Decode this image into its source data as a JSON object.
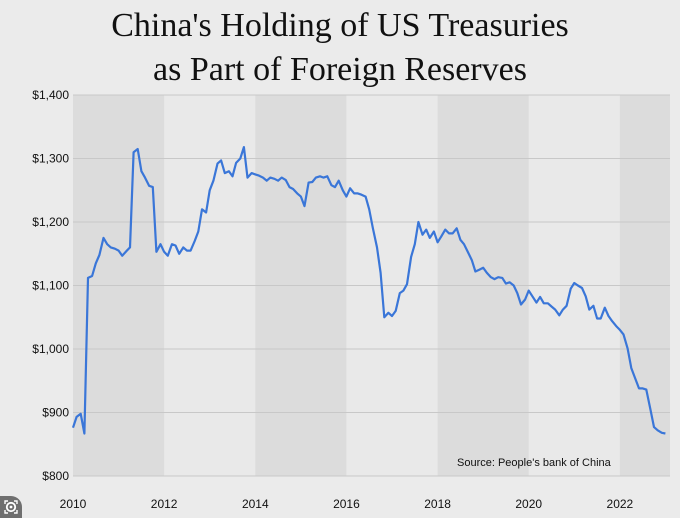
{
  "chart_data": {
    "type": "line",
    "title": "China's Holding of US Treasuries",
    "subtitle": "as Part of Foreign Reserves",
    "xlabel": "",
    "ylabel": "",
    "xlim": [
      2010,
      2023.1
    ],
    "ylim": [
      800,
      1400
    ],
    "x_ticks": [
      "2010",
      "2012",
      "2014",
      "2016",
      "2018",
      "2020",
      "2022"
    ],
    "y_ticks": [
      "$800",
      "$900",
      "$1,000",
      "$1,100",
      "$1,200",
      "$1,300",
      "$1,400"
    ],
    "grid": true,
    "shaded_bands": [
      [
        2010,
        2012
      ],
      [
        2014,
        2016
      ],
      [
        2018,
        2020
      ],
      [
        2022,
        2023.1
      ]
    ],
    "line_color": "#3a76d8",
    "source": "Source: People's bank of China",
    "series": [
      {
        "points": [
          [
            2010.0,
            876
          ],
          [
            2010.08,
            893
          ],
          [
            2010.17,
            898
          ],
          [
            2010.25,
            867
          ],
          [
            2010.33,
            1112
          ],
          [
            2010.42,
            1115
          ],
          [
            2010.5,
            1135
          ],
          [
            2010.58,
            1148
          ],
          [
            2010.67,
            1175
          ],
          [
            2010.75,
            1165
          ],
          [
            2010.83,
            1160
          ],
          [
            2010.92,
            1158
          ],
          [
            2011.0,
            1155
          ],
          [
            2011.08,
            1147
          ],
          [
            2011.17,
            1154
          ],
          [
            2011.25,
            1160
          ],
          [
            2011.33,
            1310
          ],
          [
            2011.42,
            1315
          ],
          [
            2011.5,
            1280
          ],
          [
            2011.58,
            1270
          ],
          [
            2011.67,
            1257
          ],
          [
            2011.75,
            1255
          ],
          [
            2011.83,
            1153
          ],
          [
            2011.92,
            1165
          ],
          [
            2012.0,
            1153
          ],
          [
            2012.08,
            1147
          ],
          [
            2012.17,
            1165
          ],
          [
            2012.25,
            1163
          ],
          [
            2012.33,
            1150
          ],
          [
            2012.42,
            1160
          ],
          [
            2012.5,
            1155
          ],
          [
            2012.58,
            1155
          ],
          [
            2012.67,
            1170
          ],
          [
            2012.75,
            1185
          ],
          [
            2012.83,
            1220
          ],
          [
            2012.92,
            1215
          ],
          [
            2013.0,
            1250
          ],
          [
            2013.08,
            1265
          ],
          [
            2013.17,
            1292
          ],
          [
            2013.25,
            1297
          ],
          [
            2013.33,
            1277
          ],
          [
            2013.42,
            1280
          ],
          [
            2013.5,
            1272
          ],
          [
            2013.58,
            1293
          ],
          [
            2013.67,
            1300
          ],
          [
            2013.75,
            1318
          ],
          [
            2013.83,
            1270
          ],
          [
            2013.92,
            1277
          ],
          [
            2014.0,
            1275
          ],
          [
            2014.08,
            1273
          ],
          [
            2014.17,
            1270
          ],
          [
            2014.25,
            1265
          ],
          [
            2014.33,
            1270
          ],
          [
            2014.42,
            1268
          ],
          [
            2014.5,
            1265
          ],
          [
            2014.58,
            1270
          ],
          [
            2014.67,
            1266
          ],
          [
            2014.75,
            1255
          ],
          [
            2014.83,
            1252
          ],
          [
            2014.92,
            1245
          ],
          [
            2015.0,
            1240
          ],
          [
            2015.08,
            1225
          ],
          [
            2015.17,
            1262
          ],
          [
            2015.25,
            1263
          ],
          [
            2015.33,
            1270
          ],
          [
            2015.42,
            1272
          ],
          [
            2015.5,
            1270
          ],
          [
            2015.58,
            1272
          ],
          [
            2015.67,
            1258
          ],
          [
            2015.75,
            1255
          ],
          [
            2015.83,
            1265
          ],
          [
            2015.92,
            1250
          ],
          [
            2016.0,
            1240
          ],
          [
            2016.08,
            1253
          ],
          [
            2016.17,
            1245
          ],
          [
            2016.25,
            1245
          ],
          [
            2016.33,
            1243
          ],
          [
            2016.42,
            1240
          ],
          [
            2016.5,
            1220
          ],
          [
            2016.58,
            1190
          ],
          [
            2016.67,
            1160
          ],
          [
            2016.75,
            1120
          ],
          [
            2016.83,
            1050
          ],
          [
            2016.92,
            1057
          ],
          [
            2017.0,
            1052
          ],
          [
            2017.08,
            1060
          ],
          [
            2017.17,
            1088
          ],
          [
            2017.25,
            1092
          ],
          [
            2017.33,
            1102
          ],
          [
            2017.42,
            1145
          ],
          [
            2017.5,
            1165
          ],
          [
            2017.58,
            1200
          ],
          [
            2017.67,
            1180
          ],
          [
            2017.75,
            1188
          ],
          [
            2017.83,
            1175
          ],
          [
            2017.92,
            1185
          ],
          [
            2018.0,
            1168
          ],
          [
            2018.08,
            1177
          ],
          [
            2018.17,
            1188
          ],
          [
            2018.25,
            1182
          ],
          [
            2018.33,
            1182
          ],
          [
            2018.42,
            1190
          ],
          [
            2018.5,
            1172
          ],
          [
            2018.58,
            1165
          ],
          [
            2018.67,
            1152
          ],
          [
            2018.75,
            1140
          ],
          [
            2018.83,
            1122
          ],
          [
            2018.92,
            1125
          ],
          [
            2019.0,
            1128
          ],
          [
            2019.08,
            1120
          ],
          [
            2019.17,
            1113
          ],
          [
            2019.25,
            1110
          ],
          [
            2019.33,
            1113
          ],
          [
            2019.42,
            1112
          ],
          [
            2019.5,
            1103
          ],
          [
            2019.58,
            1105
          ],
          [
            2019.67,
            1100
          ],
          [
            2019.75,
            1088
          ],
          [
            2019.83,
            1070
          ],
          [
            2019.92,
            1078
          ],
          [
            2020.0,
            1092
          ],
          [
            2020.08,
            1083
          ],
          [
            2020.17,
            1073
          ],
          [
            2020.25,
            1082
          ],
          [
            2020.33,
            1072
          ],
          [
            2020.42,
            1072
          ],
          [
            2020.5,
            1067
          ],
          [
            2020.58,
            1062
          ],
          [
            2020.67,
            1053
          ],
          [
            2020.75,
            1062
          ],
          [
            2020.83,
            1068
          ],
          [
            2020.92,
            1095
          ],
          [
            2021.0,
            1104
          ],
          [
            2021.08,
            1100
          ],
          [
            2021.17,
            1096
          ],
          [
            2021.25,
            1083
          ],
          [
            2021.33,
            1062
          ],
          [
            2021.42,
            1068
          ],
          [
            2021.5,
            1048
          ],
          [
            2021.58,
            1048
          ],
          [
            2021.67,
            1065
          ],
          [
            2021.75,
            1052
          ],
          [
            2021.83,
            1044
          ],
          [
            2021.92,
            1036
          ],
          [
            2022.0,
            1030
          ],
          [
            2022.08,
            1023
          ],
          [
            2022.17,
            1001
          ],
          [
            2022.25,
            970
          ],
          [
            2022.33,
            955
          ],
          [
            2022.42,
            938
          ],
          [
            2022.5,
            938
          ],
          [
            2022.58,
            936
          ],
          [
            2022.67,
            905
          ],
          [
            2022.75,
            877
          ],
          [
            2022.83,
            872
          ],
          [
            2022.92,
            868
          ],
          [
            2023.0,
            867
          ]
        ]
      }
    ]
  },
  "badge": {
    "icon": "google-lens-icon"
  }
}
